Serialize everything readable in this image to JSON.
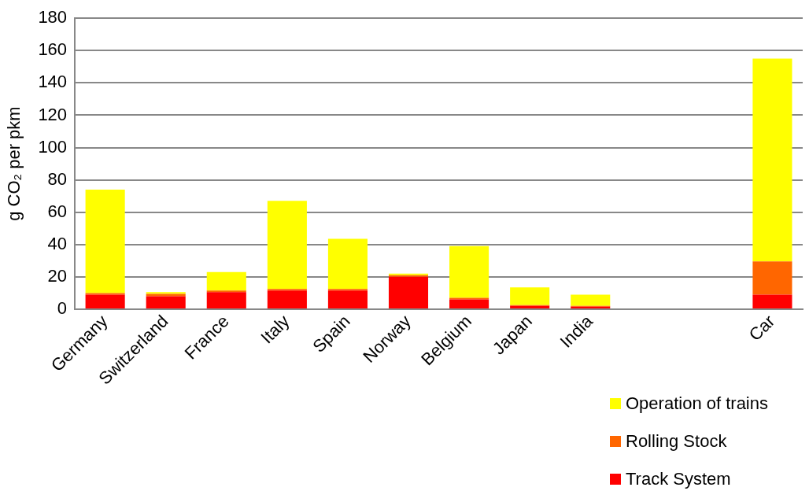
{
  "chart_data": {
    "type": "bar",
    "stacked": true,
    "ylabel": "g CO₂ per pkm",
    "categories": [
      "Germany",
      "Switzerland",
      "France",
      "Italy",
      "Spain",
      "Norway",
      "Belgium",
      "Japan",
      "India",
      null,
      null,
      "Car"
    ],
    "series": [
      {
        "name": "Track System",
        "color": "#ff0000",
        "values": [
          9,
          8,
          10.5,
          11.5,
          11.5,
          20,
          6,
          2,
          1.5,
          null,
          null,
          9
        ]
      },
      {
        "name": "Rolling Stock",
        "color": "#ff6600",
        "values": [
          1,
          1.5,
          1,
          1,
          1,
          1,
          1,
          0.5,
          0.5,
          null,
          null,
          20.5
        ]
      },
      {
        "name": "Operation of trains",
        "color": "#ffff00",
        "values": [
          64,
          1,
          11.5,
          54.5,
          31,
          1,
          32,
          11,
          7,
          null,
          null,
          125.5
        ]
      }
    ],
    "ylim": [
      0,
      180
    ],
    "yticks": [
      0,
      20,
      40,
      60,
      80,
      100,
      120,
      140,
      160,
      180
    ],
    "grid": "y",
    "legend": "bottom right"
  }
}
